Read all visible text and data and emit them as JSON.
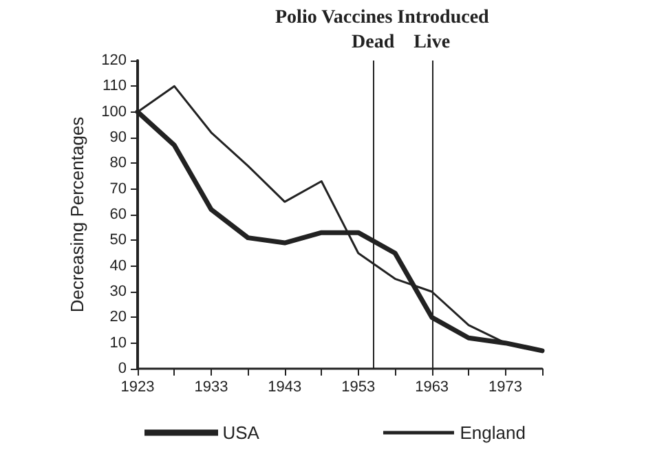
{
  "chart_data": {
    "type": "line",
    "ylabel": "Decreasing Percentages",
    "annotations": [
      "Polio Vaccines Introduced"
    ],
    "x": [
      1923,
      1928,
      1933,
      1938,
      1943,
      1948,
      1953,
      1958,
      1963,
      1968,
      1973,
      1978
    ],
    "series": [
      {
        "name": "USA",
        "color": "#222222",
        "values": [
          100,
          87,
          62,
          51,
          49,
          53,
          53,
          45,
          20,
          12,
          10,
          7
        ]
      },
      {
        "name": "England",
        "color": "#222222",
        "values": [
          100,
          110,
          92,
          79,
          65,
          73,
          45,
          35,
          30,
          17,
          10,
          7
        ]
      }
    ],
    "xlim": [
      1923,
      1978
    ],
    "xticks": [
      1923,
      {
        "value": 1928,
        "label": null
      },
      1933,
      {
        "value": 1938,
        "label": null
      },
      1943,
      {
        "value": 1948,
        "label": null
      },
      1953,
      {
        "value": 1958,
        "label": null
      },
      1963,
      {
        "value": 1968,
        "label": null
      },
      1973,
      {
        "value": 1978,
        "label": null
      }
    ],
    "ylim": [
      0,
      120
    ],
    "yticks": [
      0,
      10,
      20,
      30,
      40,
      50,
      60,
      70,
      80,
      90,
      100,
      110,
      120
    ],
    "ref_lines": [
      {
        "axis": "x",
        "value": 1955,
        "label": "Dead",
        "color": "#222222"
      },
      {
        "axis": "x",
        "value": 1963,
        "label": "Live",
        "color": "#222222"
      }
    ],
    "grid": false,
    "legend": "bottom",
    "marker": "none",
    "line_style": "solid"
  }
}
